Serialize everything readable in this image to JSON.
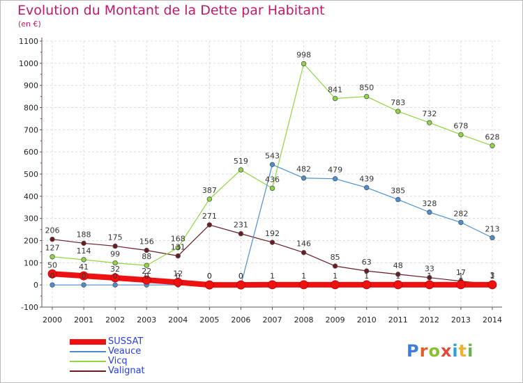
{
  "title": "Evolution du Montant de la Dette par Habitant",
  "unit": "(en €)",
  "logo": {
    "text": "Proxiti",
    "letter_colors": [
      "#3d7fd6",
      "#e0602a",
      "#8bbf2c",
      "#e24b3b",
      "#2f9fd8",
      "#f2b230",
      "#6ab04c"
    ]
  },
  "chart_data": {
    "type": "line",
    "x": [
      2000,
      2001,
      2002,
      2003,
      2004,
      2005,
      2006,
      2007,
      2008,
      2009,
      2010,
      2011,
      2012,
      2013,
      2014
    ],
    "xlabel": "",
    "ylabel": "",
    "ylim": [
      -100,
      1100
    ],
    "yticks": [
      -100,
      0,
      100,
      200,
      300,
      400,
      500,
      600,
      700,
      800,
      900,
      1000,
      1100
    ],
    "grid": true,
    "legend_position": "bottom-left",
    "series": [
      {
        "name": "Valignat",
        "color": "#6b1a22",
        "width": 1.2,
        "values": [
          206,
          188,
          175,
          156,
          131,
          271,
          231,
          192,
          146,
          85,
          63,
          48,
          33,
          17,
          3
        ],
        "labels": [
          "206",
          "188",
          "175",
          "156",
          "131",
          "271",
          "231",
          "192",
          "146",
          "85",
          "63",
          "48",
          "33",
          "17",
          "3"
        ]
      },
      {
        "name": "Vicq",
        "color": "#8fd641",
        "width": 1.2,
        "values": [
          127,
          114,
          99,
          88,
          168,
          387,
          519,
          436,
          998,
          841,
          850,
          783,
          732,
          678,
          628
        ],
        "labels": [
          "127",
          "114",
          "99",
          "88",
          "168",
          "387",
          "519",
          "436",
          "998",
          "841",
          "850",
          "783",
          "732",
          "678",
          "628"
        ]
      },
      {
        "name": "Veauce",
        "color": "#4b8fd1",
        "width": 1.2,
        "values": [
          0,
          0,
          0,
          0,
          0,
          0,
          0,
          543,
          482,
          479,
          439,
          385,
          328,
          282,
          213
        ],
        "labels": [
          "0",
          "0",
          "0",
          "0",
          "0",
          "0",
          "0",
          "543",
          "482",
          "479",
          "439",
          "385",
          "328",
          "282",
          "213"
        ]
      },
      {
        "name": "SUSSAT",
        "color": "#ee1111",
        "width": 8,
        "values": [
          50,
          41,
          32,
          22,
          12,
          0,
          0,
          1,
          1,
          1,
          1,
          1,
          1,
          1,
          1
        ],
        "labels": [
          "50",
          "41",
          "32",
          "22",
          "12",
          "0",
          "0",
          "1",
          "1",
          "1",
          "1",
          "1",
          "1",
          "1",
          "1"
        ]
      }
    ],
    "legend": [
      {
        "name": "SUSSAT",
        "color": "#ee1111",
        "label_color": "#2a3fd8"
      },
      {
        "name": "Veauce",
        "color": "#4b8fd1",
        "label_color": "#2a3fd8"
      },
      {
        "name": "Vicq",
        "color": "#8fd641",
        "label_color": "#2a3fd8"
      },
      {
        "name": "Valignat",
        "color": "#6b1a22",
        "label_color": "#2a3fd8"
      }
    ]
  }
}
